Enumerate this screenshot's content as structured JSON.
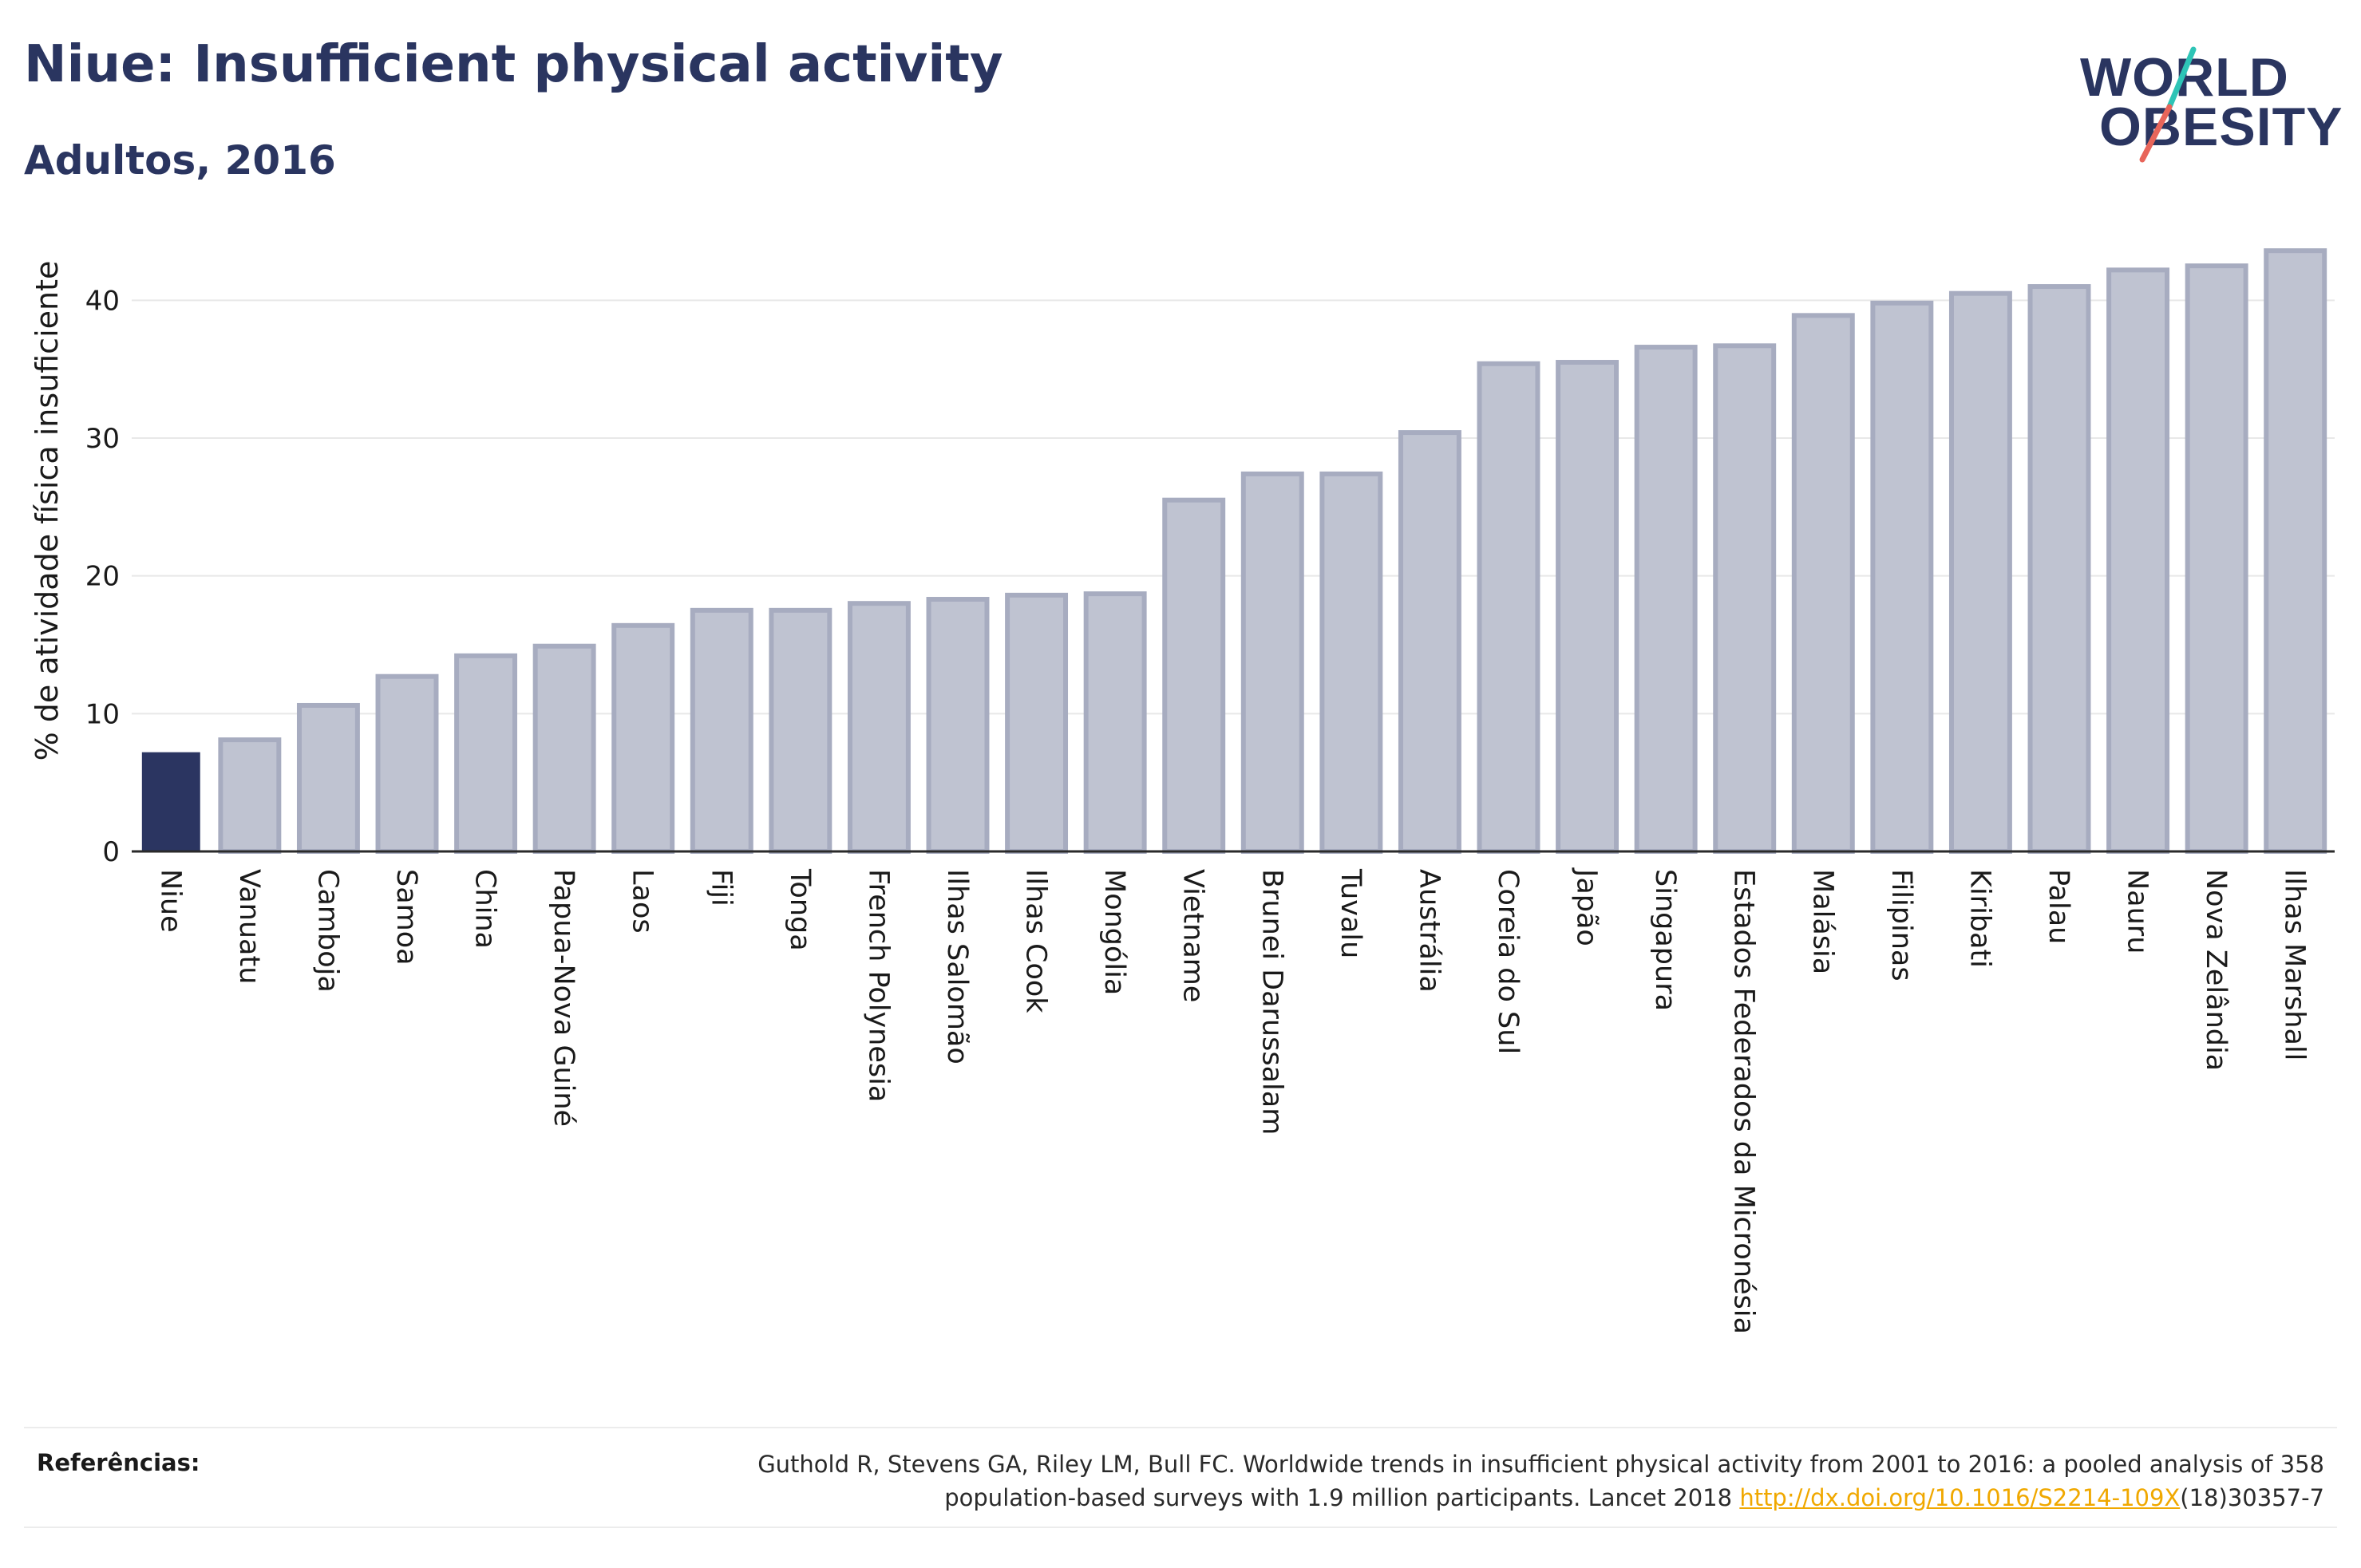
{
  "header": {
    "title": "Niue: Insufficient physical activity",
    "subtitle": "Adultos, 2016"
  },
  "logo": {
    "line1": "WORLD",
    "line2": "OBESITY",
    "colors": {
      "text": "#2a3560",
      "slash_teal": "#2ec4b6",
      "slash_coral": "#e8655a"
    }
  },
  "colors": {
    "highlight_bar": "#2b3561",
    "other_bar_fill": "#bfc3d1",
    "other_bar_stroke": "#a7acc0",
    "grid": "#e8e8e8",
    "axis": "#2a2a2a"
  },
  "chart_data": {
    "type": "bar",
    "title": "Niue: Insufficient physical activity",
    "subtitle": "Adultos, 2016",
    "xlabel": "",
    "ylabel": "% de atividade física insuficiente",
    "ylim": [
      0,
      45
    ],
    "yticks": [
      0,
      10,
      20,
      30,
      40
    ],
    "grid": true,
    "highlight": "Niue",
    "categories": [
      "Niue",
      "Vanuatu",
      "Camboja",
      "Samoa",
      "China",
      "Papua-Nova Guiné",
      "Laos",
      "Fiji",
      "Tonga",
      "French Polynesia",
      "Ilhas Salomão",
      "Ilhas Cook",
      "Mongólia",
      "Vietname",
      "Brunei Darussalam",
      "Tuvalu",
      "Austrália",
      "Coreia do Sul",
      "Japão",
      "Singapura",
      "Estados Federados da Micronésia",
      "Malásia",
      "Filipinas",
      "Kiribati",
      "Palau",
      "Nauru",
      "Nova Zelândia",
      "Ilhas Marshall"
    ],
    "values": [
      7.2,
      8.1,
      10.6,
      12.7,
      14.2,
      14.9,
      16.4,
      17.5,
      17.5,
      18.0,
      18.3,
      18.6,
      18.7,
      25.5,
      27.4,
      27.4,
      30.4,
      35.4,
      35.5,
      36.6,
      36.7,
      38.9,
      39.8,
      40.5,
      41.0,
      42.2,
      42.5,
      43.6
    ]
  },
  "footer": {
    "label": "Referências:",
    "reference_line1": "Guthold R, Stevens GA, Riley LM, Bull FC. Worldwide trends in insufficient physical activity from 2001 to 2016: a pooled analysis of 358",
    "reference_line2_start": "population-based surveys with 1.9 million participants. Lancet 2018 ",
    "reference_link": "http://dx.doi.org/10.1016/S2214-109X",
    "reference_line2_end": "(18)30357-7"
  }
}
